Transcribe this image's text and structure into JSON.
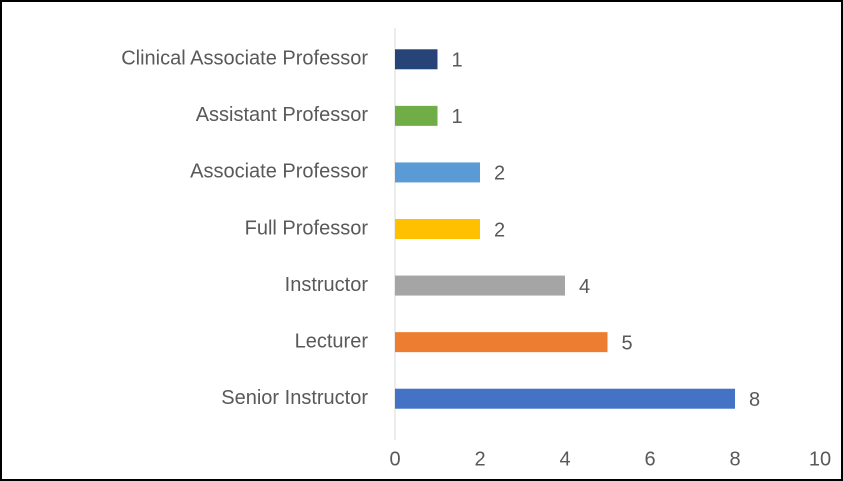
{
  "chart_data": {
    "type": "bar",
    "orientation": "horizontal",
    "categories": [
      "Clinical Associate Professor",
      "Assistant Professor",
      "Associate Professor",
      "Full Professor",
      "Instructor",
      "Lecturer",
      "Senior Instructor"
    ],
    "values": [
      1,
      1,
      2,
      2,
      4,
      5,
      8
    ],
    "colors": [
      "#264478",
      "#70ad47",
      "#5b9bd5",
      "#ffc000",
      "#a5a5a5",
      "#ed7d31",
      "#4472c4"
    ],
    "xlim": [
      0,
      10
    ],
    "xticks": [
      0,
      2,
      4,
      6,
      8,
      10
    ]
  }
}
